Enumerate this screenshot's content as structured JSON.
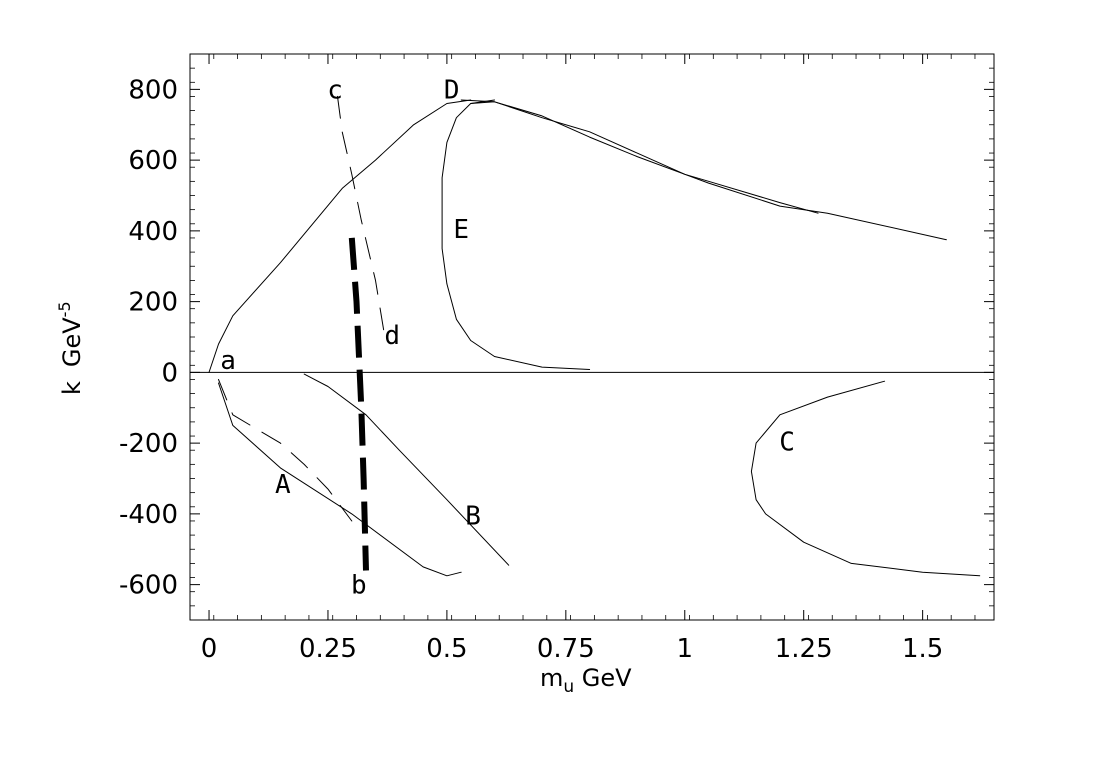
{
  "chart_data": {
    "type": "line",
    "title": "",
    "xlabel": "m",
    "xlabel_sub": "u",
    "xlabel_unit": " GeV",
    "ylabel": "k",
    "ylabel_unit": "GeV",
    "ylabel_exp": "-5",
    "xlim": [
      -0.04,
      1.65
    ],
    "ylim": [
      -700,
      900
    ],
    "xticks": [
      0,
      0.25,
      0.5,
      0.75,
      1,
      1.25,
      1.5
    ],
    "xtick_labels": [
      "0",
      "0.25",
      "0.5",
      "0.75",
      "1",
      "1.25",
      "1.5"
    ],
    "yticks": [
      -600,
      -400,
      -200,
      0,
      200,
      400,
      600,
      800
    ],
    "ytick_labels": [
      "-600",
      "-400",
      "-200",
      "0",
      "200",
      "400",
      "600",
      "800"
    ],
    "zero_line": true,
    "grid": false,
    "curve_labels": [
      {
        "text": "a",
        "x": 0.04,
        "y": 35
      },
      {
        "text": "b",
        "x": 0.315,
        "y": -600
      },
      {
        "text": "c",
        "x": 0.265,
        "y": 800
      },
      {
        "text": "d",
        "x": 0.385,
        "y": 105
      },
      {
        "text": "A",
        "x": 0.155,
        "y": -315
      },
      {
        "text": "B",
        "x": 0.555,
        "y": -405
      },
      {
        "text": "C",
        "x": 1.215,
        "y": -195
      },
      {
        "text": "D",
        "x": 0.51,
        "y": 800
      },
      {
        "text": "E",
        "x": 0.53,
        "y": 405
      }
    ],
    "series": [
      {
        "style": "thin-solid",
        "x": [
          0.0,
          0.02,
          0.05,
          0.15,
          0.28,
          0.35,
          0.43,
          0.5,
          0.55
        ],
        "y": [
          0,
          80,
          160,
          310,
          520,
          600,
          700,
          760,
          770
        ]
      },
      {
        "style": "thin-solid",
        "x": [
          0.53,
          0.6,
          0.7,
          0.8,
          0.9,
          1.0,
          1.05,
          1.2,
          1.3,
          1.55
        ],
        "y": [
          770,
          765,
          720,
          680,
          620,
          560,
          535,
          470,
          450,
          375
        ]
      },
      {
        "style": "thin-solid",
        "x": [
          0.55,
          0.6,
          0.7,
          0.8,
          0.9,
          1.0,
          1.05,
          1.2,
          1.28
        ],
        "y": [
          760,
          765,
          725,
          665,
          610,
          560,
          540,
          480,
          450
        ]
      },
      {
        "style": "thin-solid",
        "x": [
          0.6,
          0.55,
          0.52,
          0.5,
          0.49,
          0.49,
          0.49,
          0.5,
          0.52,
          0.55,
          0.6,
          0.7,
          0.8
        ],
        "y": [
          770,
          760,
          720,
          650,
          550,
          450,
          350,
          250,
          150,
          90,
          45,
          15,
          8
        ]
      },
      {
        "style": "thin-solid",
        "x": [
          0.02,
          0.05,
          0.15,
          0.3,
          0.45,
          0.5,
          0.53
        ],
        "y": [
          -30,
          -150,
          -270,
          -400,
          -550,
          -575,
          -565
        ]
      },
      {
        "style": "thin-solid",
        "x": [
          0.2,
          0.25,
          0.33,
          0.4,
          0.5,
          0.63
        ],
        "y": [
          -5,
          -40,
          -120,
          -220,
          -360,
          -545
        ]
      },
      {
        "style": "thin-solid",
        "x": [
          1.42,
          1.3,
          1.2,
          1.15,
          1.14,
          1.15,
          1.17,
          1.25,
          1.35,
          1.5,
          1.62
        ],
        "y": [
          -25,
          -70,
          -120,
          -200,
          -280,
          -360,
          -400,
          -480,
          -540,
          -565,
          -575
        ]
      },
      {
        "style": "dashed",
        "x": [
          0.02,
          0.05,
          0.1,
          0.15,
          0.2,
          0.25,
          0.3
        ],
        "y": [
          -20,
          -120,
          -160,
          -200,
          -260,
          -330,
          -420
        ]
      },
      {
        "style": "dashed",
        "x": [
          0.27,
          0.28,
          0.3,
          0.32,
          0.35,
          0.37
        ],
        "y": [
          780,
          680,
          560,
          430,
          260,
          95
        ]
      },
      {
        "style": "thick-dashed",
        "x": [
          0.3,
          0.31,
          0.315,
          0.32,
          0.325,
          0.33
        ],
        "y": [
          380,
          200,
          50,
          -100,
          -300,
          -560
        ]
      }
    ]
  }
}
